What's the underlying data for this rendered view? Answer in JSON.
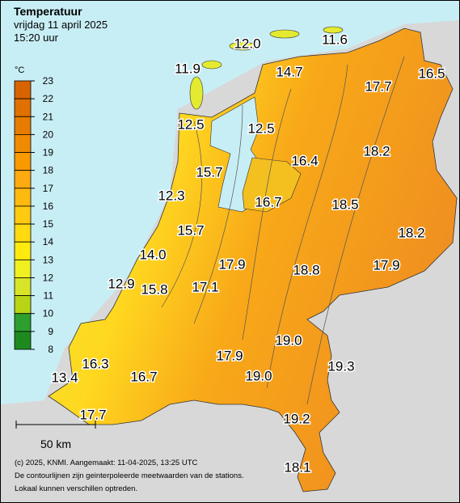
{
  "header": {
    "title": "Temperatuur",
    "date": "vrijdag 11 april 2025",
    "time": "15:20 uur"
  },
  "legend": {
    "unit": "°C",
    "ticks": [
      23,
      22,
      21,
      20,
      19,
      18,
      17,
      16,
      15,
      14,
      13,
      12,
      11,
      10,
      9,
      8
    ],
    "colors": [
      "#d86400",
      "#e07000",
      "#e87c00",
      "#f08a00",
      "#f89a00",
      "#ffaa10",
      "#ffba10",
      "#ffca10",
      "#ffda10",
      "#ffea10",
      "#f0f020",
      "#d8e428",
      "#b8d414",
      "#2e9e2e",
      "#1e8a1e"
    ]
  },
  "stations": [
    "12.0",
    "11.6",
    "11.9",
    "14.7",
    "17.7",
    "16.5",
    "12.5",
    "12.5",
    "16.4",
    "18.2",
    "15.7",
    "12.3",
    "16.7",
    "18.5",
    "18.2",
    "15.7",
    "14.0",
    "17.9",
    "18.8",
    "17.9",
    "12.9",
    "15.8",
    "17.1",
    "19.0",
    "19.3",
    "16.3",
    "17.9",
    "19.0",
    "13.4",
    "16.7",
    "17.7",
    "19.2",
    "18.1"
  ],
  "scale": "50 km",
  "footer": [
    "(c) 2025, KNMI. Aangemaakt: 11-04-2025, 13:25 UTC",
    "De contourlijnen zijn geinterpoleerde meetwaarden van de stations.",
    "Lokaal kunnen verschillen optreden."
  ]
}
